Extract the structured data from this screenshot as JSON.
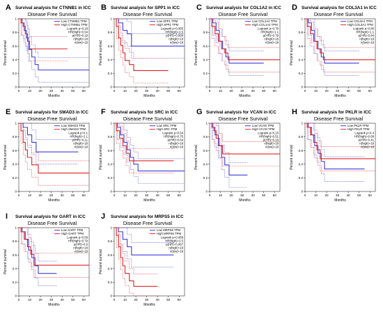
{
  "figure": {
    "panels": [
      {
        "letter": "A",
        "title": "Survival analysis for CTNNB1 in ICC",
        "subtitle": "Disease Free Survival",
        "legend": {
          "low": "Low CTNNB1 TPM",
          "high": "High CTNNB1 TPM"
        },
        "stats": [
          "Logrank p=0.18",
          "HR(high)=0.54",
          "p(HR)=0.19",
          "n(high)=18",
          "n(low)=18"
        ]
      },
      {
        "letter": "B",
        "title": "Survival analysis for SPP1 in ICC",
        "subtitle": "Disease Free Survival",
        "legend": {
          "low": "Low SPP1 TPM",
          "high": "High SPP1 TPM"
        },
        "stats": [
          "Logrank p=0.065",
          "HR(high)=2.5",
          "p(HR)=0.069",
          "n(high)=18",
          "n(low)=18"
        ]
      },
      {
        "letter": "C",
        "title": "Survival analysis for COL1A2 in ICC",
        "subtitle": "Disease Free Survival",
        "legend": {
          "low": "Low COL1A2 TPM",
          "high": "High COL1A2 TPM"
        },
        "stats": [
          "Logrank p=0.79",
          "HR(high)=1.1",
          "p(HR)=0.79",
          "n(high)=18",
          "n(low)=18"
        ]
      },
      {
        "letter": "D",
        "title": "Survival analysis for COL3A1 in ICC",
        "subtitle": "Disease Free Survival",
        "legend": {
          "low": "Low COL3A1 TPM",
          "high": "High COL3A1 TPM"
        },
        "stats": [
          "Logrank p=0.80",
          "HR(high)=1.1",
          "p(HR)=0.84",
          "n(high)=18",
          "n(low)=18"
        ]
      },
      {
        "letter": "E",
        "title": "Survival analysis for SMAD3 in ICC",
        "subtitle": "Disease Free Survival",
        "legend": {
          "low": "Low SMAD3 TPM",
          "high": "High SMAD3 TPM"
        },
        "stats": [
          "Logrank p=0.1",
          "HR(high)=2.1",
          "p(HR)=0.11",
          "n(high)=18",
          "n(low)=18"
        ]
      },
      {
        "letter": "F",
        "title": "Survival analysis for SRC in ICC",
        "subtitle": "Disease Free Survival",
        "legend": {
          "low": "Low SRC TPM",
          "high": "High SRC TPM"
        },
        "stats": [
          "Logrank p=0.54",
          "HR(high)=0.75",
          "p(HR)=0.54",
          "n(high)=18",
          "n(low)=18"
        ]
      },
      {
        "letter": "G",
        "title": "Survival analysis for VCAN in ICC",
        "subtitle": "Disease Free Survival",
        "legend": {
          "low": "Low VCAN TPM",
          "high": "High VCAN TPM"
        },
        "stats": [
          "Logrank p=0.15",
          "HR(high)=0.51",
          "p(HR)=0.16",
          "n(high)=18",
          "n(low)=18"
        ]
      },
      {
        "letter": "H",
        "title": "Survival analysis for PKLR in ICC",
        "subtitle": "Disease Free Survival",
        "legend": {
          "low": "Low PKLR TPM",
          "high": "High PKLR TPM"
        },
        "stats": [
          "Logrank p=0.4",
          "HR(high)=0.68",
          "p(HR)=0.41",
          "n(high)=18",
          "n(low)=18"
        ]
      },
      {
        "letter": "I",
        "title": "Survival analysis for GART in ICC",
        "subtitle": "Disease Free Survival",
        "legend": {
          "low": "Low GART TPM",
          "high": "High GART TPM"
        },
        "stats": [
          "Logrank p=0.59",
          "HR(high)=0.79",
          "p(HR)=0.6",
          "n(high)=18",
          "n(low)=18"
        ]
      },
      {
        "letter": "J",
        "title": "Survival analysis for MRPS5 in ICC",
        "subtitle": "Disease Free Survival",
        "legend": {
          "low": "Low MRPS5 TPM",
          "high": "High MRPS5 TPM"
        },
        "stats": [
          "Logrank p=0.058",
          "HR(high)=2.5",
          "p(HR)=0.067",
          "n(high)=18",
          "n(low)=18"
        ]
      }
    ]
  },
  "chart_data": [
    {
      "type": "line",
      "panel": "A",
      "xlabel": "Months",
      "ylabel": "Percent survival",
      "xlim": [
        0,
        65
      ],
      "ylim": [
        0,
        1
      ],
      "xticks": [
        0,
        10,
        20,
        30,
        40,
        50,
        60
      ],
      "yticks": [
        0,
        0.2,
        0.4,
        0.6,
        0.8,
        1.0
      ],
      "series": [
        {
          "name": "Low CTNNB1 TPM",
          "color": "#3b3bd6",
          "x": [
            0,
            3,
            5,
            7,
            9,
            12,
            15,
            18,
            65
          ],
          "y": [
            1,
            0.94,
            0.83,
            0.72,
            0.55,
            0.44,
            0.33,
            0.25,
            0.25
          ]
        },
        {
          "name": "High CTNNB1 TPM",
          "color": "#e02020",
          "x": [
            0,
            2,
            4,
            6,
            8,
            10,
            45
          ],
          "y": [
            1,
            0.94,
            0.89,
            0.78,
            0.67,
            0.56,
            0.56
          ]
        }
      ]
    },
    {
      "type": "line",
      "panel": "B",
      "xlabel": "Months",
      "ylabel": "Percent survival",
      "xlim": [
        0,
        65
      ],
      "ylim": [
        0,
        1
      ],
      "xticks": [
        0,
        10,
        20,
        30,
        40,
        50,
        60
      ],
      "yticks": [
        0,
        0.2,
        0.4,
        0.6,
        0.8,
        1.0
      ],
      "series": [
        {
          "name": "Low SPP1 TPM",
          "color": "#3b3bd6",
          "x": [
            0,
            4,
            8,
            12,
            16,
            65
          ],
          "y": [
            1,
            0.94,
            0.83,
            0.78,
            0.6,
            0.6
          ]
        },
        {
          "name": "High SPP1 TPM",
          "color": "#e02020",
          "x": [
            0,
            2,
            4,
            6,
            8,
            10,
            14,
            18,
            50
          ],
          "y": [
            1,
            0.89,
            0.72,
            0.61,
            0.5,
            0.39,
            0.33,
            0.24,
            0.24
          ]
        }
      ]
    },
    {
      "type": "line",
      "panel": "C",
      "xlabel": "Months",
      "ylabel": "Percent survival",
      "xlim": [
        0,
        65
      ],
      "ylim": [
        0,
        1
      ],
      "xticks": [
        0,
        10,
        20,
        30,
        40,
        50,
        60
      ],
      "yticks": [
        0,
        0.2,
        0.4,
        0.6,
        0.8,
        1.0
      ],
      "series": [
        {
          "name": "Low COL1A2 TPM",
          "color": "#3b3bd6",
          "x": [
            0,
            3,
            6,
            9,
            12,
            15,
            18,
            50
          ],
          "y": [
            1,
            0.94,
            0.83,
            0.67,
            0.56,
            0.44,
            0.35,
            0.35
          ]
        },
        {
          "name": "High COL1A2 TPM",
          "color": "#e02020",
          "x": [
            0,
            2,
            5,
            8,
            11,
            14,
            17,
            65
          ],
          "y": [
            1,
            0.89,
            0.78,
            0.67,
            0.56,
            0.5,
            0.4,
            0.4
          ]
        }
      ]
    },
    {
      "type": "line",
      "panel": "D",
      "xlabel": "Months",
      "ylabel": "Percent survival",
      "xlim": [
        0,
        65
      ],
      "ylim": [
        0,
        1
      ],
      "xticks": [
        0,
        10,
        20,
        30,
        40,
        50,
        60
      ],
      "yticks": [
        0,
        0.2,
        0.4,
        0.6,
        0.8,
        1.0
      ],
      "series": [
        {
          "name": "Low COL3A1 TPM",
          "color": "#3b3bd6",
          "x": [
            0,
            3,
            6,
            9,
            12,
            15,
            18,
            50
          ],
          "y": [
            1,
            0.94,
            0.83,
            0.67,
            0.56,
            0.44,
            0.35,
            0.35
          ]
        },
        {
          "name": "High COL3A1 TPM",
          "color": "#e02020",
          "x": [
            0,
            2,
            5,
            8,
            11,
            14,
            17,
            65
          ],
          "y": [
            1,
            0.89,
            0.78,
            0.67,
            0.56,
            0.5,
            0.4,
            0.4
          ]
        }
      ]
    },
    {
      "type": "line",
      "panel": "E",
      "xlabel": "Months",
      "ylabel": "Percent survival",
      "xlim": [
        0,
        65
      ],
      "ylim": [
        0,
        1
      ],
      "xticks": [
        0,
        10,
        20,
        30,
        40,
        50,
        60
      ],
      "yticks": [
        0,
        0.2,
        0.4,
        0.6,
        0.8,
        1.0
      ],
      "series": [
        {
          "name": "Low SMAD3 TPM",
          "color": "#3b3bd6",
          "x": [
            0,
            4,
            8,
            12,
            16,
            55
          ],
          "y": [
            1,
            0.94,
            0.83,
            0.72,
            0.58,
            0.58
          ]
        },
        {
          "name": "High SMAD3 TPM",
          "color": "#e02020",
          "x": [
            0,
            2,
            4,
            6,
            8,
            12,
            18,
            65
          ],
          "y": [
            1,
            0.89,
            0.72,
            0.61,
            0.5,
            0.39,
            0.27,
            0.27
          ]
        }
      ]
    },
    {
      "type": "line",
      "panel": "F",
      "xlabel": "Months",
      "ylabel": "Percent survival",
      "xlim": [
        0,
        65
      ],
      "ylim": [
        0,
        1
      ],
      "xticks": [
        0,
        10,
        20,
        30,
        40,
        50,
        60
      ],
      "yticks": [
        0,
        0.2,
        0.4,
        0.6,
        0.8,
        1.0
      ],
      "series": [
        {
          "name": "Low SRC TPM",
          "color": "#3b3bd6",
          "x": [
            0,
            3,
            6,
            9,
            12,
            15,
            18,
            22,
            65
          ],
          "y": [
            1,
            0.94,
            0.83,
            0.72,
            0.61,
            0.5,
            0.4,
            0.3,
            0.3
          ]
        },
        {
          "name": "High SRC TPM",
          "color": "#e02020",
          "x": [
            0,
            2,
            5,
            8,
            11,
            14,
            55
          ],
          "y": [
            1,
            0.89,
            0.78,
            0.67,
            0.56,
            0.45,
            0.45
          ]
        }
      ]
    },
    {
      "type": "line",
      "panel": "G",
      "xlabel": "Months",
      "ylabel": "Percent survival",
      "xlim": [
        0,
        65
      ],
      "ylim": [
        0,
        1
      ],
      "xticks": [
        0,
        10,
        20,
        30,
        40,
        50,
        60
      ],
      "yticks": [
        0,
        0.2,
        0.4,
        0.6,
        0.8,
        1.0
      ],
      "series": [
        {
          "name": "Low VCAN TPM",
          "color": "#3b3bd6",
          "x": [
            0,
            3,
            5,
            8,
            11,
            14,
            18,
            35
          ],
          "y": [
            1,
            0.94,
            0.83,
            0.67,
            0.5,
            0.39,
            0.24,
            0.24
          ]
        },
        {
          "name": "High VCAN TPM",
          "color": "#e02020",
          "x": [
            0,
            2,
            4,
            6,
            9,
            12,
            65
          ],
          "y": [
            1,
            0.94,
            0.89,
            0.78,
            0.67,
            0.55,
            0.55
          ]
        }
      ]
    },
    {
      "type": "line",
      "panel": "H",
      "xlabel": "Months",
      "ylabel": "Percent survival",
      "xlim": [
        0,
        65
      ],
      "ylim": [
        0,
        1
      ],
      "xticks": [
        0,
        10,
        20,
        30,
        40,
        50,
        60
      ],
      "yticks": [
        0,
        0.2,
        0.4,
        0.6,
        0.8,
        1.0
      ],
      "series": [
        {
          "name": "Low PKLR TPM",
          "color": "#3b3bd6",
          "x": [
            0,
            3,
            6,
            9,
            12,
            15,
            18,
            55
          ],
          "y": [
            1,
            0.94,
            0.83,
            0.67,
            0.56,
            0.44,
            0.33,
            0.33
          ]
        },
        {
          "name": "High PKLR TPM",
          "color": "#e02020",
          "x": [
            0,
            2,
            5,
            8,
            11,
            14,
            65
          ],
          "y": [
            1,
            0.94,
            0.83,
            0.72,
            0.61,
            0.48,
            0.48
          ]
        }
      ]
    },
    {
      "type": "line",
      "panel": "I",
      "xlabel": "Months",
      "ylabel": "Percent survival",
      "xlim": [
        0,
        65
      ],
      "ylim": [
        0,
        1
      ],
      "xticks": [
        0,
        10,
        20,
        30,
        40,
        50,
        60
      ],
      "yticks": [
        0,
        0.2,
        0.4,
        0.6,
        0.8,
        1.0
      ],
      "series": [
        {
          "name": "Low GART TPM",
          "color": "#3b3bd6",
          "x": [
            0,
            3,
            6,
            9,
            12,
            15,
            18,
            35
          ],
          "y": [
            1,
            0.94,
            0.83,
            0.67,
            0.56,
            0.44,
            0.33,
            0.33
          ]
        },
        {
          "name": "High GART TPM",
          "color": "#e02020",
          "x": [
            0,
            2,
            5,
            8,
            11,
            14,
            65
          ],
          "y": [
            1,
            0.94,
            0.83,
            0.72,
            0.61,
            0.45,
            0.45
          ]
        }
      ]
    },
    {
      "type": "line",
      "panel": "J",
      "xlabel": "Months",
      "ylabel": "Percent survival",
      "xlim": [
        0,
        65
      ],
      "ylim": [
        0,
        1
      ],
      "xticks": [
        0,
        10,
        20,
        30,
        40,
        50,
        60
      ],
      "yticks": [
        0,
        0.2,
        0.4,
        0.6,
        0.8,
        1.0
      ],
      "series": [
        {
          "name": "Low MRPS5 TPM",
          "color": "#3b3bd6",
          "x": [
            0,
            4,
            8,
            12,
            16,
            55
          ],
          "y": [
            1,
            0.94,
            0.83,
            0.72,
            0.6,
            0.6
          ]
        },
        {
          "name": "High MRPS5 TPM",
          "color": "#e02020",
          "x": [
            0,
            2,
            4,
            6,
            8,
            10,
            14,
            18,
            40
          ],
          "y": [
            1,
            0.89,
            0.72,
            0.56,
            0.44,
            0.33,
            0.22,
            0.14,
            0.14
          ]
        }
      ]
    }
  ]
}
